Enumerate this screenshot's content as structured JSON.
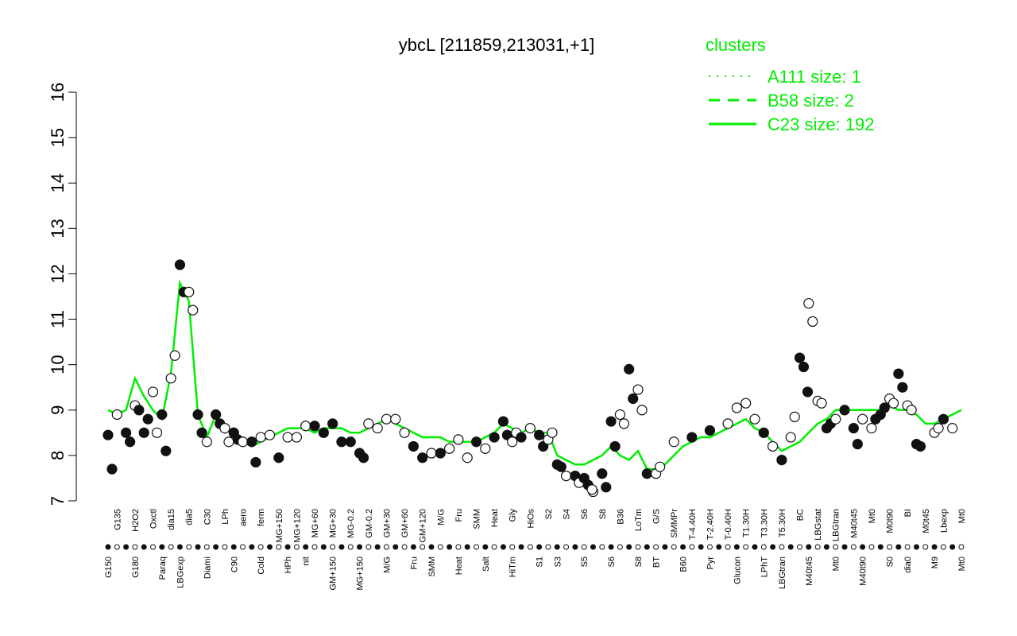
{
  "chart_data": {
    "type": "line",
    "title": "ybcL [211859,213031,+1]",
    "xlabel": "",
    "ylabel": "",
    "ylim": [
      7,
      16
    ],
    "yticks": [
      7,
      8,
      9,
      10,
      11,
      12,
      13,
      14,
      15,
      16
    ],
    "legend": {
      "title": "clusters",
      "placement": "top-right",
      "entries": [
        {
          "label": "A111 size: 1",
          "style": "dotted"
        },
        {
          "label": "B58 size: 2",
          "style": "dashed"
        },
        {
          "label": "C23 size: 192",
          "style": "solid"
        }
      ]
    },
    "x_tick_labels": [
      "G150",
      "G135",
      "G180",
      "H2O2",
      "Paraq",
      "Oxctl",
      "LBGexp",
      "dia15",
      "Diami",
      "dia5",
      "C90",
      "C30",
      "Cold",
      "LPh",
      "HPh",
      "aero",
      "nit",
      "ferm",
      "GM+150",
      "MG+150",
      "M9-tran",
      "MG+120",
      "MG+90",
      "MG+60",
      "MG+45",
      "MG+30",
      "MG+15",
      "MG-0.2",
      "Glucon",
      "GM-0.2",
      "GM+15",
      "GM+30",
      "GM+45",
      "GM+60",
      "GM+90",
      "GM+120",
      "M9-exp",
      "M/G",
      "Mal",
      "Fru",
      "Glu",
      "SMM",
      "BMM",
      "Heat",
      "Salt",
      "Gly",
      "HiTm",
      "HiOs",
      "S1",
      "S2",
      "S3",
      "S4",
      "S5",
      "S6",
      "S7",
      "S8",
      "BT",
      "B36",
      "B60",
      "LoTm",
      "Pyr",
      "G/S",
      "Glucon",
      "SMMPr",
      "T-5.40H",
      "T-4.40H",
      "T-3.40H",
      "T-2.40H",
      "T-1.40H",
      "T-0.40H",
      "T0.30H",
      "T1.30H",
      "T2.30H",
      "T3.30H",
      "T4.30H",
      "T5.30H",
      "M9-stat",
      "BC",
      "Sw",
      "LBGstat",
      "LPhT",
      "LBGtran",
      "M0t45",
      "M40t45",
      "Lbtran",
      "Mt0",
      "M40t90",
      "M0t90",
      "Lbstat",
      "BI",
      "S0",
      "M0t45",
      "dia0",
      "Lbexp",
      "M9",
      "Mt0"
    ],
    "x_tick_labels_rotated": [
      "G150",
      "G180",
      "Paraq",
      "LBGexp",
      "Diami",
      "C90",
      "Cold",
      "HPh",
      "nit",
      "GM+150",
      "MG+150",
      "M/G",
      "Fru",
      "SMM",
      "Heat",
      "Salt",
      "HiTm",
      "S1",
      "S3",
      "S5",
      "S6",
      "S8",
      "BT",
      "B60",
      "Pyr",
      "Glucon",
      "LPhT",
      "LBGtran",
      "M40t45",
      "Mt0",
      "M40t90",
      "S0",
      "dia0",
      "M9",
      "Mt0"
    ],
    "series": [
      {
        "style": "solid",
        "color": "#00ee00",
        "values": [
          9.0,
          8.9,
          9.0,
          9.7,
          9.3,
          9.0,
          8.8,
          9.8,
          11.8,
          11.4,
          8.9,
          8.4,
          8.9,
          8.5,
          8.6,
          8.3,
          8.2,
          8.3,
          8.4,
          8.5,
          8.6,
          8.6,
          8.6,
          8.5,
          8.6,
          8.6,
          8.6,
          8.5,
          8.5,
          8.6,
          8.7,
          8.8,
          8.7,
          8.6,
          8.5,
          8.4,
          8.4,
          8.4,
          8.3,
          8.3,
          8.3,
          8.3,
          8.4,
          8.5,
          8.7,
          8.6,
          8.5,
          8.6,
          8.5,
          8.5,
          8.0,
          7.9,
          7.8,
          7.8,
          7.9,
          8.0,
          8.2,
          8.0,
          7.9,
          8.1,
          7.7,
          7.7,
          7.8,
          8.0,
          8.2,
          8.3,
          8.4,
          8.4,
          8.5,
          8.6,
          8.7,
          8.8,
          8.6,
          8.5,
          8.3,
          8.1,
          8.2,
          8.3,
          8.5,
          8.7,
          8.8,
          9.0,
          9.0,
          9.0,
          9.0,
          9.0,
          9.0,
          9.1,
          9.0,
          9.0,
          8.9,
          8.7,
          8.7,
          8.8,
          8.9,
          9.0
        ]
      }
    ],
    "points": [
      {
        "x": "G150",
        "y": 8.45,
        "filled": true
      },
      {
        "x": "G150",
        "y": 7.7,
        "filled": true
      },
      {
        "x": "G135",
        "y": 8.9,
        "filled": false
      },
      {
        "x": "G180",
        "y": 8.5,
        "filled": true
      },
      {
        "x": "G180",
        "y": 8.3,
        "filled": true
      },
      {
        "x": "H2O2",
        "y": 9.1,
        "filled": false
      },
      {
        "x": "H2O2",
        "y": 9.0,
        "filled": true
      },
      {
        "x": "Paraq",
        "y": 8.5,
        "filled": true
      },
      {
        "x": "Paraq",
        "y": 8.8,
        "filled": true
      },
      {
        "x": "Oxctl",
        "y": 9.4,
        "filled": false
      },
      {
        "x": "Oxctl",
        "y": 8.5,
        "filled": false
      },
      {
        "x": "LBGexp",
        "y": 8.9,
        "filled": true
      },
      {
        "x": "LBGexp",
        "y": 8.1,
        "filled": true
      },
      {
        "x": "dia15",
        "y": 9.7,
        "filled": false
      },
      {
        "x": "dia15",
        "y": 10.2,
        "filled": false
      },
      {
        "x": "Diami",
        "y": 12.2,
        "filled": true
      },
      {
        "x": "Diami",
        "y": 11.6,
        "filled": true
      },
      {
        "x": "dia5",
        "y": 11.6,
        "filled": false
      },
      {
        "x": "dia5",
        "y": 11.2,
        "filled": false
      },
      {
        "x": "C90",
        "y": 8.9,
        "filled": true
      },
      {
        "x": "C90",
        "y": 8.5,
        "filled": true
      },
      {
        "x": "C30",
        "y": 8.3,
        "filled": false
      },
      {
        "x": "Cold",
        "y": 8.9,
        "filled": true
      },
      {
        "x": "Cold",
        "y": 8.7,
        "filled": true
      },
      {
        "x": "LPh",
        "y": 8.6,
        "filled": false
      },
      {
        "x": "LPh",
        "y": 8.3,
        "filled": false
      },
      {
        "x": "HPh",
        "y": 8.5,
        "filled": true
      },
      {
        "x": "HPh",
        "y": 8.35,
        "filled": true
      },
      {
        "x": "aero",
        "y": 8.3,
        "filled": false
      },
      {
        "x": "nit",
        "y": 8.3,
        "filled": true
      },
      {
        "x": "nit",
        "y": 7.85,
        "filled": true
      },
      {
        "x": "ferm",
        "y": 8.4,
        "filled": false
      },
      {
        "x": "GM+150",
        "y": 8.45,
        "filled": false
      },
      {
        "x": "MG+150",
        "y": 7.95,
        "filled": true
      },
      {
        "x": "M9-tran",
        "y": 8.4,
        "filled": false
      },
      {
        "x": "MG+120",
        "y": 8.4,
        "filled": false
      },
      {
        "x": "MG+90",
        "y": 8.65,
        "filled": false
      },
      {
        "x": "MG+60",
        "y": 8.65,
        "filled": true
      },
      {
        "x": "MG+45",
        "y": 8.5,
        "filled": true
      },
      {
        "x": "MG+30",
        "y": 8.7,
        "filled": true
      },
      {
        "x": "MG+15",
        "y": 8.3,
        "filled": true
      },
      {
        "x": "MG-0.2",
        "y": 8.3,
        "filled": true
      },
      {
        "x": "Glucon",
        "y": 8.05,
        "filled": true
      },
      {
        "x": "GM-0.2",
        "y": 8.7,
        "filled": false
      },
      {
        "x": "GM+15",
        "y": 8.6,
        "filled": false
      },
      {
        "x": "GM+30",
        "y": 8.8,
        "filled": false
      },
      {
        "x": "GM+45",
        "y": 8.8,
        "filled": false
      },
      {
        "x": "GM+60",
        "y": 8.5,
        "filled": false
      },
      {
        "x": "GM+90",
        "y": 8.2,
        "filled": true
      },
      {
        "x": "GM+120",
        "y": 7.95,
        "filled": true
      },
      {
        "x": "M9-exp",
        "y": 8.05,
        "filled": false
      },
      {
        "x": "M/G",
        "y": 8.05,
        "filled": true
      },
      {
        "x": "Mal",
        "y": 8.15,
        "filled": false
      },
      {
        "x": "Fru",
        "y": 8.35,
        "filled": false
      },
      {
        "x": "Glu",
        "y": 7.95,
        "filled": false
      },
      {
        "x": "SMM",
        "y": 8.3,
        "filled": true
      },
      {
        "x": "BMM",
        "y": 8.15,
        "filled": false
      },
      {
        "x": "Heat",
        "y": 8.4,
        "filled": true
      },
      {
        "x": "Salt",
        "y": 8.75,
        "filled": true
      },
      {
        "x": "Salt",
        "y": 8.45,
        "filled": true
      },
      {
        "x": "Gly",
        "y": 8.3,
        "filled": false
      },
      {
        "x": "Gly",
        "y": 8.5,
        "filled": false
      },
      {
        "x": "HiTm",
        "y": 8.4,
        "filled": true
      },
      {
        "x": "HiOs",
        "y": 8.6,
        "filled": false
      },
      {
        "x": "S1",
        "y": 8.45,
        "filled": true
      },
      {
        "x": "S1",
        "y": 8.2,
        "filled": true
      },
      {
        "x": "S2",
        "y": 8.35,
        "filled": false
      },
      {
        "x": "S2",
        "y": 8.5,
        "filled": false
      },
      {
        "x": "S3",
        "y": 7.8,
        "filled": true
      },
      {
        "x": "S3",
        "y": 7.75,
        "filled": true
      },
      {
        "x": "S4",
        "y": 7.55,
        "filled": false
      },
      {
        "x": "S5",
        "y": 7.55,
        "filled": true
      },
      {
        "x": "S5",
        "y": 7.4,
        "filled": false
      },
      {
        "x": "S6",
        "y": 7.5,
        "filled": true
      },
      {
        "x": "S6",
        "y": 7.35,
        "filled": true
      },
      {
        "x": "S7",
        "y": 7.2,
        "filled": false
      },
      {
        "x": "S8",
        "y": 7.6,
        "filled": true
      },
      {
        "x": "S8",
        "y": 7.3,
        "filled": true
      },
      {
        "x": "S6",
        "y": 7.25,
        "filled": false
      },
      {
        "x": "BT",
        "y": 8.75,
        "filled": true
      },
      {
        "x": "BT",
        "y": 8.2,
        "filled": true
      },
      {
        "x": "B36",
        "y": 8.9,
        "filled": false
      },
      {
        "x": "B36",
        "y": 8.7,
        "filled": false
      },
      {
        "x": "B60",
        "y": 9.9,
        "filled": true
      },
      {
        "x": "B60",
        "y": 9.25,
        "filled": true
      },
      {
        "x": "LoTm",
        "y": 9.45,
        "filled": false
      },
      {
        "x": "LoTm",
        "y": 9.0,
        "filled": false
      },
      {
        "x": "Pyr",
        "y": 7.6,
        "filled": true
      },
      {
        "x": "G/S",
        "y": 7.6,
        "filled": false
      },
      {
        "x": "G/S",
        "y": 7.75,
        "filled": false
      },
      {
        "x": "Glucon",
        "y": 7.95,
        "filled": true
      },
      {
        "x": "SMMPr",
        "y": 8.3,
        "filled": false
      },
      {
        "x": "T-4.40H",
        "y": 8.4,
        "filled": true
      },
      {
        "x": "T-2.40H",
        "y": 8.55,
        "filled": true
      },
      {
        "x": "T-0.40H",
        "y": 8.7,
        "filled": false
      },
      {
        "x": "T0.30H",
        "y": 9.05,
        "filled": false
      },
      {
        "x": "T1.30H",
        "y": 9.15,
        "filled": false
      },
      {
        "x": "T2.30H",
        "y": 8.8,
        "filled": false
      },
      {
        "x": "T3.30H",
        "y": 8.5,
        "filled": true
      },
      {
        "x": "T4.30H",
        "y": 8.2,
        "filled": false
      },
      {
        "x": "T5.30H",
        "y": 7.9,
        "filled": true
      },
      {
        "x": "M9-stat",
        "y": 8.4,
        "filled": false
      },
      {
        "x": "M9-stat",
        "y": 8.85,
        "filled": false
      },
      {
        "x": "BC",
        "y": 10.15,
        "filled": true
      },
      {
        "x": "BC",
        "y": 9.95,
        "filled": true
      },
      {
        "x": "BC",
        "y": 9.4,
        "filled": true
      },
      {
        "x": "Sw",
        "y": 11.35,
        "filled": false
      },
      {
        "x": "Sw",
        "y": 10.95,
        "filled": false
      },
      {
        "x": "LBGstat",
        "y": 9.2,
        "filled": false
      },
      {
        "x": "LBGstat",
        "y": 9.15,
        "filled": false
      },
      {
        "x": "LPhT",
        "y": 8.6,
        "filled": true
      },
      {
        "x": "LPhT",
        "y": 8.7,
        "filled": true
      },
      {
        "x": "LBGtran",
        "y": 8.8,
        "filled": false
      },
      {
        "x": "M0t45",
        "y": 9.0,
        "filled": true
      },
      {
        "x": "M40t45",
        "y": 8.6,
        "filled": true
      },
      {
        "x": "M40t45",
        "y": 8.25,
        "filled": true
      },
      {
        "x": "Lbtran",
        "y": 8.8,
        "filled": false
      },
      {
        "x": "Mt0",
        "y": 8.6,
        "filled": false
      },
      {
        "x": "M40t90",
        "y": 8.9,
        "filled": true
      },
      {
        "x": "M40t90",
        "y": 9.05,
        "filled": true
      },
      {
        "x": "M0t90",
        "y": 9.25,
        "filled": false
      },
      {
        "x": "M0t90",
        "y": 9.15,
        "filled": false
      },
      {
        "x": "Lbstat",
        "y": 9.8,
        "filled": true
      },
      {
        "x": "Lbstat",
        "y": 9.5,
        "filled": true
      },
      {
        "x": "BI",
        "y": 9.1,
        "filled": false
      },
      {
        "x": "BI",
        "y": 9.0,
        "filled": false
      },
      {
        "x": "S0",
        "y": 8.25,
        "filled": true
      },
      {
        "x": "S0",
        "y": 8.2,
        "filled": true
      },
      {
        "x": "dia0",
        "y": 8.5,
        "filled": false
      },
      {
        "x": "dia0",
        "y": 8.6,
        "filled": false
      },
      {
        "x": "Lbexp",
        "y": 8.8,
        "filled": true
      },
      {
        "x": "M9",
        "y": 8.6,
        "filled": false
      },
      {
        "x": "Mt0",
        "y": 8.8,
        "filled": true
      }
    ]
  }
}
